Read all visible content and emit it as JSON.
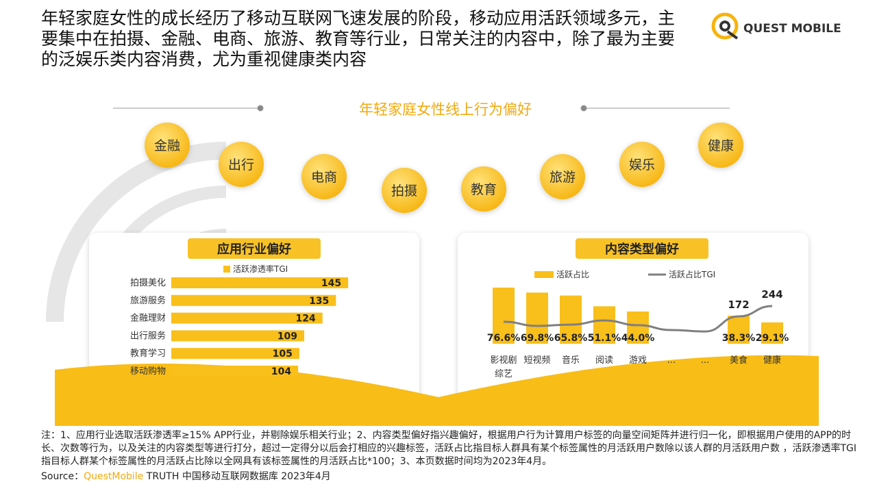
{
  "header": {
    "title": "年轻家庭女性的成长经历了移动互联网飞速发展的阶段，移动应用活跃领域多元，主要集中在拍摄、金融、电商、旅游、教育等行业，日常关注的内容中，除了最为主要的泛娱乐类内容消费，尤为重视健康类内容",
    "logo": "QUEST MOBILE"
  },
  "section_title": "年轻家庭女性线上行为偏好",
  "tags": [
    "金融",
    "出行",
    "电商",
    "拍摄",
    "教育",
    "旅游",
    "娱乐",
    "健康"
  ],
  "chart_data": [
    {
      "type": "hbar",
      "title": "应用行业偏好",
      "categories": [
        "拍摄美化",
        "旅游服务",
        "金融理财",
        "出行服务",
        "教育学习",
        "移动购物"
      ],
      "series": [
        {
          "name": "活跃渗透率TGI",
          "color": "#f9bf1a",
          "values": [
            145,
            135,
            124,
            109,
            105,
            104
          ]
        }
      ]
    },
    {
      "type": "bar-line",
      "title": "内容类型偏好",
      "categories": [
        "影视剧综艺",
        "短视频",
        "音乐",
        "阅读",
        "游戏",
        "...",
        "...",
        "美食",
        "健康"
      ],
      "series": [
        {
          "name": "活跃占比",
          "type": "bar",
          "color": "#f9bf1a",
          "values": [
            76.6,
            69.8,
            65.8,
            51.1,
            44.0,
            null,
            null,
            38.3,
            29.1
          ],
          "value_labels": [
            "76.6%",
            "69.8%",
            "65.8%",
            "51.1%",
            "44.0%",
            null,
            null,
            "38.3%",
            "29.1%"
          ]
        },
        {
          "name": "活跃占比TGI",
          "type": "line",
          "color": "#7f7f7f",
          "values": [
            134,
            105,
            114,
            143,
            110,
            76,
            66,
            172,
            244
          ],
          "value_labels": [
            null,
            null,
            null,
            null,
            null,
            null,
            null,
            "172",
            "244"
          ]
        }
      ]
    }
  ],
  "notes": "注：1、应用行业选取活跃渗透率≥15% APP行业，并剔除娱乐相关行业；2、内容类型偏好指兴趣偏好，根据用户行为计算用户标签的向量空间矩阵并进行归一化，即根据用户使用的APP的时长、次数等行为，以及关注的内容类型等进行打分，超过一定得分以后会打相应的兴趣标签，活跃占比指目标人群具有某个标签属性的月活跃用户数除以该人群的月活跃用户数 ，活跃渗透率TGI指目标人群某个标签属性的月活跃占比除以全网具有该标签属性的月活跃占比*100；3、本页数据时间均为2023年4月。",
  "source": {
    "label": "Source：",
    "brand": "QuestMobile",
    "text": " TRUTH 中国移动互联网数据库 2023年4月"
  }
}
